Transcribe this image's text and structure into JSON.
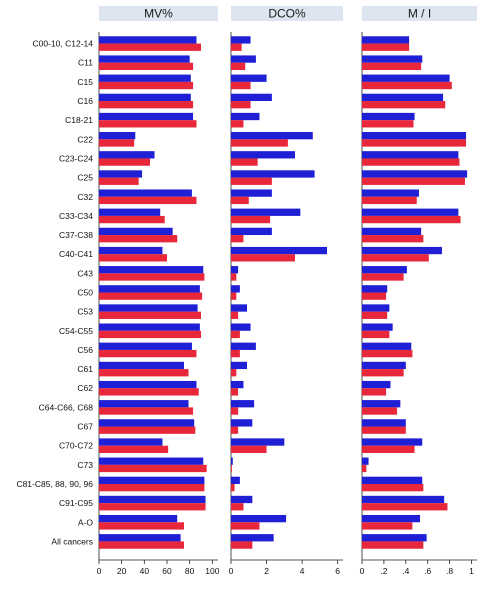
{
  "chart_data": {
    "type": "bar",
    "orientation": "horizontal",
    "categories": [
      "C00-10, C12-14",
      "C11",
      "C15",
      "C16",
      "C18-21",
      "C22",
      "C23-C24",
      "C25",
      "C32",
      "C33-C34",
      "C37-C38",
      "C40-C41",
      "C43",
      "C50",
      "C53",
      "C54-C55",
      "C56",
      "C61",
      "C62",
      "C64-C66, C68",
      "C67",
      "C70-C72",
      "C73",
      "C81-C85, 88, 90, 96",
      "C91-C95",
      "A-O",
      "All cancers"
    ],
    "series_colors": [
      "#1f1fd6",
      "#e8283a"
    ],
    "grid": false,
    "legend": "none",
    "panels": [
      {
        "title": "MV%",
        "xlim": [
          0,
          105
        ],
        "ticks": [
          0,
          20,
          40,
          60,
          80,
          100
        ],
        "tick_labels": [
          "0",
          "20",
          "40",
          "60",
          "80",
          "100"
        ],
        "series": [
          {
            "values": [
              86,
              80,
              81,
              81,
              83,
              32,
              49,
              38,
              82,
              54,
              65,
              56,
              92,
              89,
              87,
              89,
              82,
              75,
              86,
              79,
              84,
              56,
              92,
              93,
              94,
              69,
              72
            ]
          },
          {
            "values": [
              90,
              83,
              83,
              83,
              86,
              31,
              45,
              35,
              86,
              58,
              69,
              60,
              93,
              91,
              90,
              90,
              86,
              79,
              88,
              83,
              85,
              61,
              95,
              93,
              94,
              75,
              75
            ]
          }
        ]
      },
      {
        "title": "DCO%",
        "xlim": [
          0,
          6.3
        ],
        "ticks": [
          0,
          2,
          4,
          6
        ],
        "tick_labels": [
          "0",
          "2",
          "4",
          "6"
        ],
        "series": [
          {
            "values": [
              1.1,
              1.4,
              2.0,
              2.3,
              1.6,
              4.6,
              3.6,
              4.7,
              2.3,
              3.9,
              2.3,
              5.4,
              0.4,
              0.5,
              0.9,
              1.1,
              1.4,
              0.9,
              0.7,
              1.3,
              1.2,
              3.0,
              0.1,
              0.5,
              1.2,
              3.1,
              2.4
            ]
          },
          {
            "values": [
              0.6,
              0.8,
              1.1,
              1.1,
              0.7,
              3.2,
              1.5,
              2.3,
              1.0,
              2.2,
              0.7,
              3.6,
              0.3,
              0.3,
              0.4,
              0.5,
              0.5,
              0.3,
              0.4,
              0.4,
              0.4,
              2.0,
              0.05,
              0.2,
              0.7,
              1.6,
              1.2
            ]
          }
        ]
      },
      {
        "title": "M / I",
        "xlim": [
          0,
          1.05
        ],
        "ticks": [
          0,
          0.2,
          0.4,
          0.6,
          0.8,
          1.0
        ],
        "tick_labels": [
          "0",
          ".2",
          ".4",
          ".6",
          ".8",
          "1"
        ],
        "series": [
          {
            "values": [
              0.43,
              0.55,
              0.8,
              0.74,
              0.48,
              0.95,
              0.88,
              0.96,
              0.52,
              0.88,
              0.54,
              0.73,
              0.41,
              0.23,
              0.25,
              0.28,
              0.45,
              0.4,
              0.26,
              0.35,
              0.4,
              0.55,
              0.06,
              0.55,
              0.75,
              0.53,
              0.59
            ]
          },
          {
            "values": [
              0.43,
              0.54,
              0.82,
              0.76,
              0.47,
              0.95,
              0.89,
              0.94,
              0.5,
              0.9,
              0.56,
              0.61,
              0.38,
              0.22,
              0.23,
              0.25,
              0.46,
              0.38,
              0.22,
              0.32,
              0.4,
              0.48,
              0.04,
              0.56,
              0.78,
              0.46,
              0.56
            ]
          }
        ]
      }
    ]
  }
}
